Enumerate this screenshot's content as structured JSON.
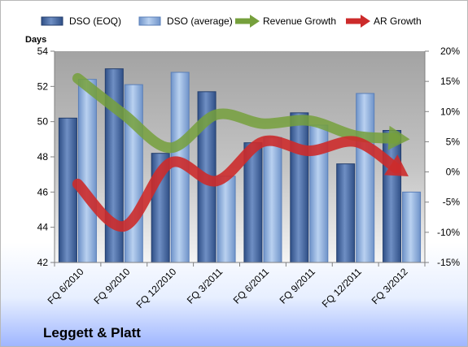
{
  "company_name": "Leggett & Platt",
  "chart_data": {
    "type": "bar",
    "categories": [
      "FQ 6/2010",
      "FQ 9/2010",
      "FQ 12/2010",
      "FQ 3/2011",
      "FQ 6/2011",
      "FQ 9/2011",
      "FQ 12/2011",
      "FQ 3/2012"
    ],
    "series": [
      {
        "name": "DSO (EOQ)",
        "type": "bar",
        "axis": "left",
        "color": "#4f6fa5",
        "values": [
          50.2,
          53.0,
          48.2,
          51.7,
          48.8,
          50.5,
          47.6,
          49.5
        ]
      },
      {
        "name": "DSO (average)",
        "type": "bar",
        "axis": "left",
        "color": "#8fb0dd",
        "values": [
          52.4,
          52.1,
          52.8,
          46.9,
          49.1,
          49.8,
          51.6,
          46.0
        ]
      },
      {
        "name": "Revenue Growth",
        "type": "line",
        "axis": "right",
        "color": "#76a03c",
        "values": [
          15.5,
          9.5,
          4.0,
          9.5,
          8.0,
          8.5,
          6.0,
          5.5
        ]
      },
      {
        "name": "AR Growth",
        "type": "line",
        "axis": "right",
        "color": "#cc2b2b",
        "values": [
          -2.0,
          -9.0,
          1.5,
          -1.5,
          5.0,
          3.5,
          5.0,
          0.0
        ]
      }
    ],
    "ylabel": "Days",
    "ylim": [
      42,
      54
    ],
    "yticks": [
      42,
      44,
      46,
      48,
      50,
      52,
      54
    ],
    "y2lim": [
      -15,
      20
    ],
    "y2ticks": [
      "-15%",
      "-10%",
      "-5%",
      "0%",
      "5%",
      "10%",
      "15%",
      "20%"
    ],
    "y2tick_values": [
      -15,
      -10,
      -5,
      0,
      5,
      10,
      15,
      20
    ],
    "legend_position": "top",
    "grid": false
  }
}
